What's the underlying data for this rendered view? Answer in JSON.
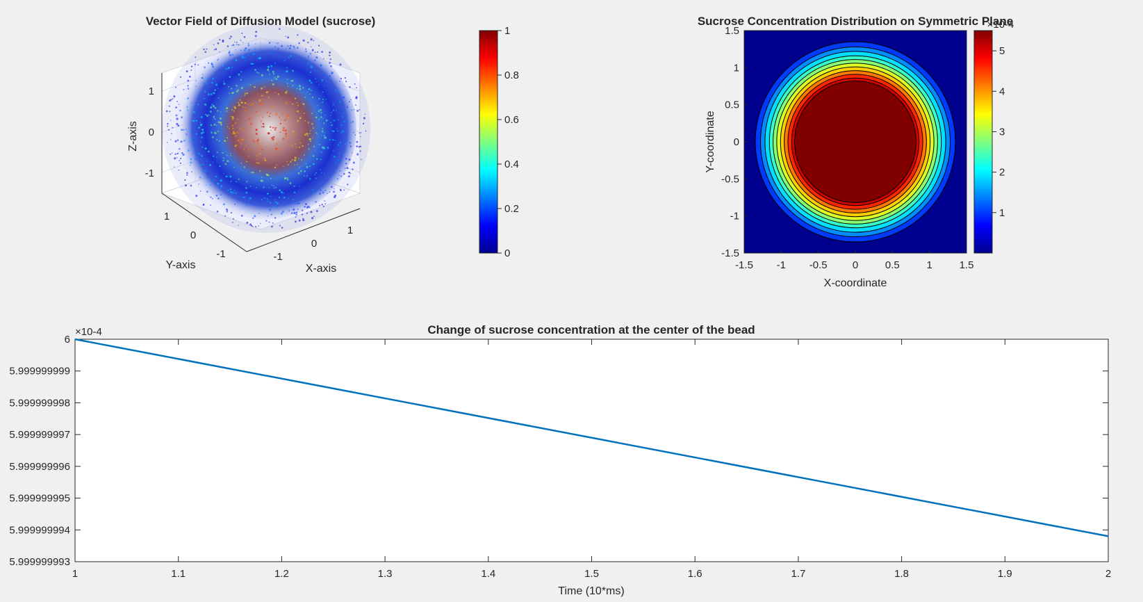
{
  "figure": {
    "background": "#f0f0f0",
    "axis_color": "#262626",
    "line_color": "#0072BD"
  },
  "chart_data": [
    {
      "type": "scatter",
      "title": "Vector Field of Diffusion Model (sucrose)",
      "projection": "3d",
      "xlabel": "X-axis",
      "ylabel": "Y-axis",
      "zlabel": "Z-axis",
      "xticks": [
        "-1",
        "0",
        "1"
      ],
      "yticks": [
        "-1",
        "0",
        "1"
      ],
      "zticks": [
        "-1",
        "0",
        "1"
      ],
      "xlim": [
        -1.6,
        1.6
      ],
      "ylim": [
        -1.6,
        1.6
      ],
      "zlim": [
        -1.6,
        1.6
      ],
      "colormap": "jet",
      "colorbar": {
        "min": 0,
        "max": 1,
        "ticks": [
          "0",
          "0.2",
          "0.4",
          "0.6",
          "0.8",
          "1"
        ]
      },
      "grid": true
    },
    {
      "type": "heatmap",
      "title": "Sucrose Concentration Distribution on Symmetric Plane",
      "xlabel": "X-coordinate",
      "ylabel": "Y-coordinate",
      "xlim": [
        -1.5,
        1.5
      ],
      "ylim": [
        -1.5,
        1.5
      ],
      "xticks": [
        "-1.5",
        "-1",
        "-0.5",
        "0",
        "0.5",
        "1",
        "1.5"
      ],
      "yticks": [
        "-1.5",
        "-1",
        "-0.5",
        "0",
        "0.5",
        "1",
        "1.5"
      ],
      "colormap": "jet",
      "contour_radii": [
        1.35,
        1.28,
        1.22,
        1.16,
        1.11,
        1.06,
        1.01,
        0.96,
        0.91,
        0.86,
        0.82
      ],
      "colorbar": {
        "min": 0,
        "max": 5.5,
        "ticks": [
          "1",
          "2",
          "3",
          "4",
          "5"
        ],
        "exponent": "×10-4"
      }
    },
    {
      "type": "line",
      "title": "Change of sucrose concentration at the center of the bead",
      "xlabel": "Time (10*ms)",
      "ylabel": "",
      "xlim": [
        1,
        2
      ],
      "ylim": [
        5.999999993,
        6.0
      ],
      "y_exponent": "×10-4",
      "xticks": [
        "1",
        "1.1",
        "1.2",
        "1.3",
        "1.4",
        "1.5",
        "1.6",
        "1.7",
        "1.8",
        "1.9",
        "2"
      ],
      "yticks": [
        "5.999999993",
        "5.999999994",
        "5.999999995",
        "5.999999996",
        "5.999999997",
        "5.999999998",
        "5.999999999",
        "6"
      ],
      "series": [
        {
          "x": [
            1,
            2
          ],
          "values": [
            6.0,
            5.9999999938
          ]
        }
      ]
    }
  ]
}
